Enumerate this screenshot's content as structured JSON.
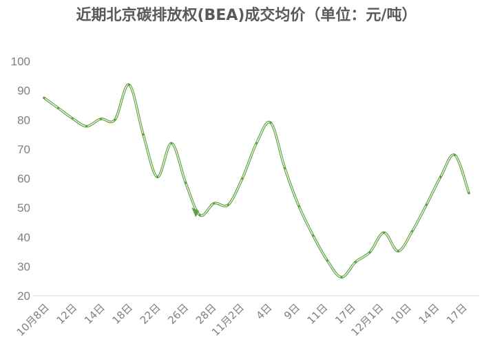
{
  "chart_data": {
    "type": "line",
    "title": "近期北京碳排放权(BEA)成交均价（单位：元/吨）",
    "xlabel": "",
    "ylabel": "",
    "ylim": [
      20,
      100
    ],
    "yticks": [
      20,
      30,
      40,
      50,
      60,
      70,
      80,
      90,
      100
    ],
    "grid": false,
    "line_color": "#5aa03c",
    "x_tick_labels": [
      "10月8日",
      "12日",
      "14日",
      "18日",
      "22日",
      "26日",
      "28日",
      "11月2日",
      "4日",
      "9日",
      "11日",
      "17日",
      "12月1日",
      "10日",
      "14日",
      "17日"
    ],
    "series": [
      {
        "values": [
          87.5,
          84,
          80.5,
          77.8,
          80.3,
          80,
          92,
          75,
          60.5,
          72,
          58.5,
          47.5,
          51.5,
          51,
          60,
          72,
          79,
          63.5,
          50.5,
          40.5,
          32,
          26.3,
          31.5,
          34.8,
          41.5,
          35.2,
          42,
          51,
          60.5,
          68,
          55
        ]
      }
    ]
  }
}
